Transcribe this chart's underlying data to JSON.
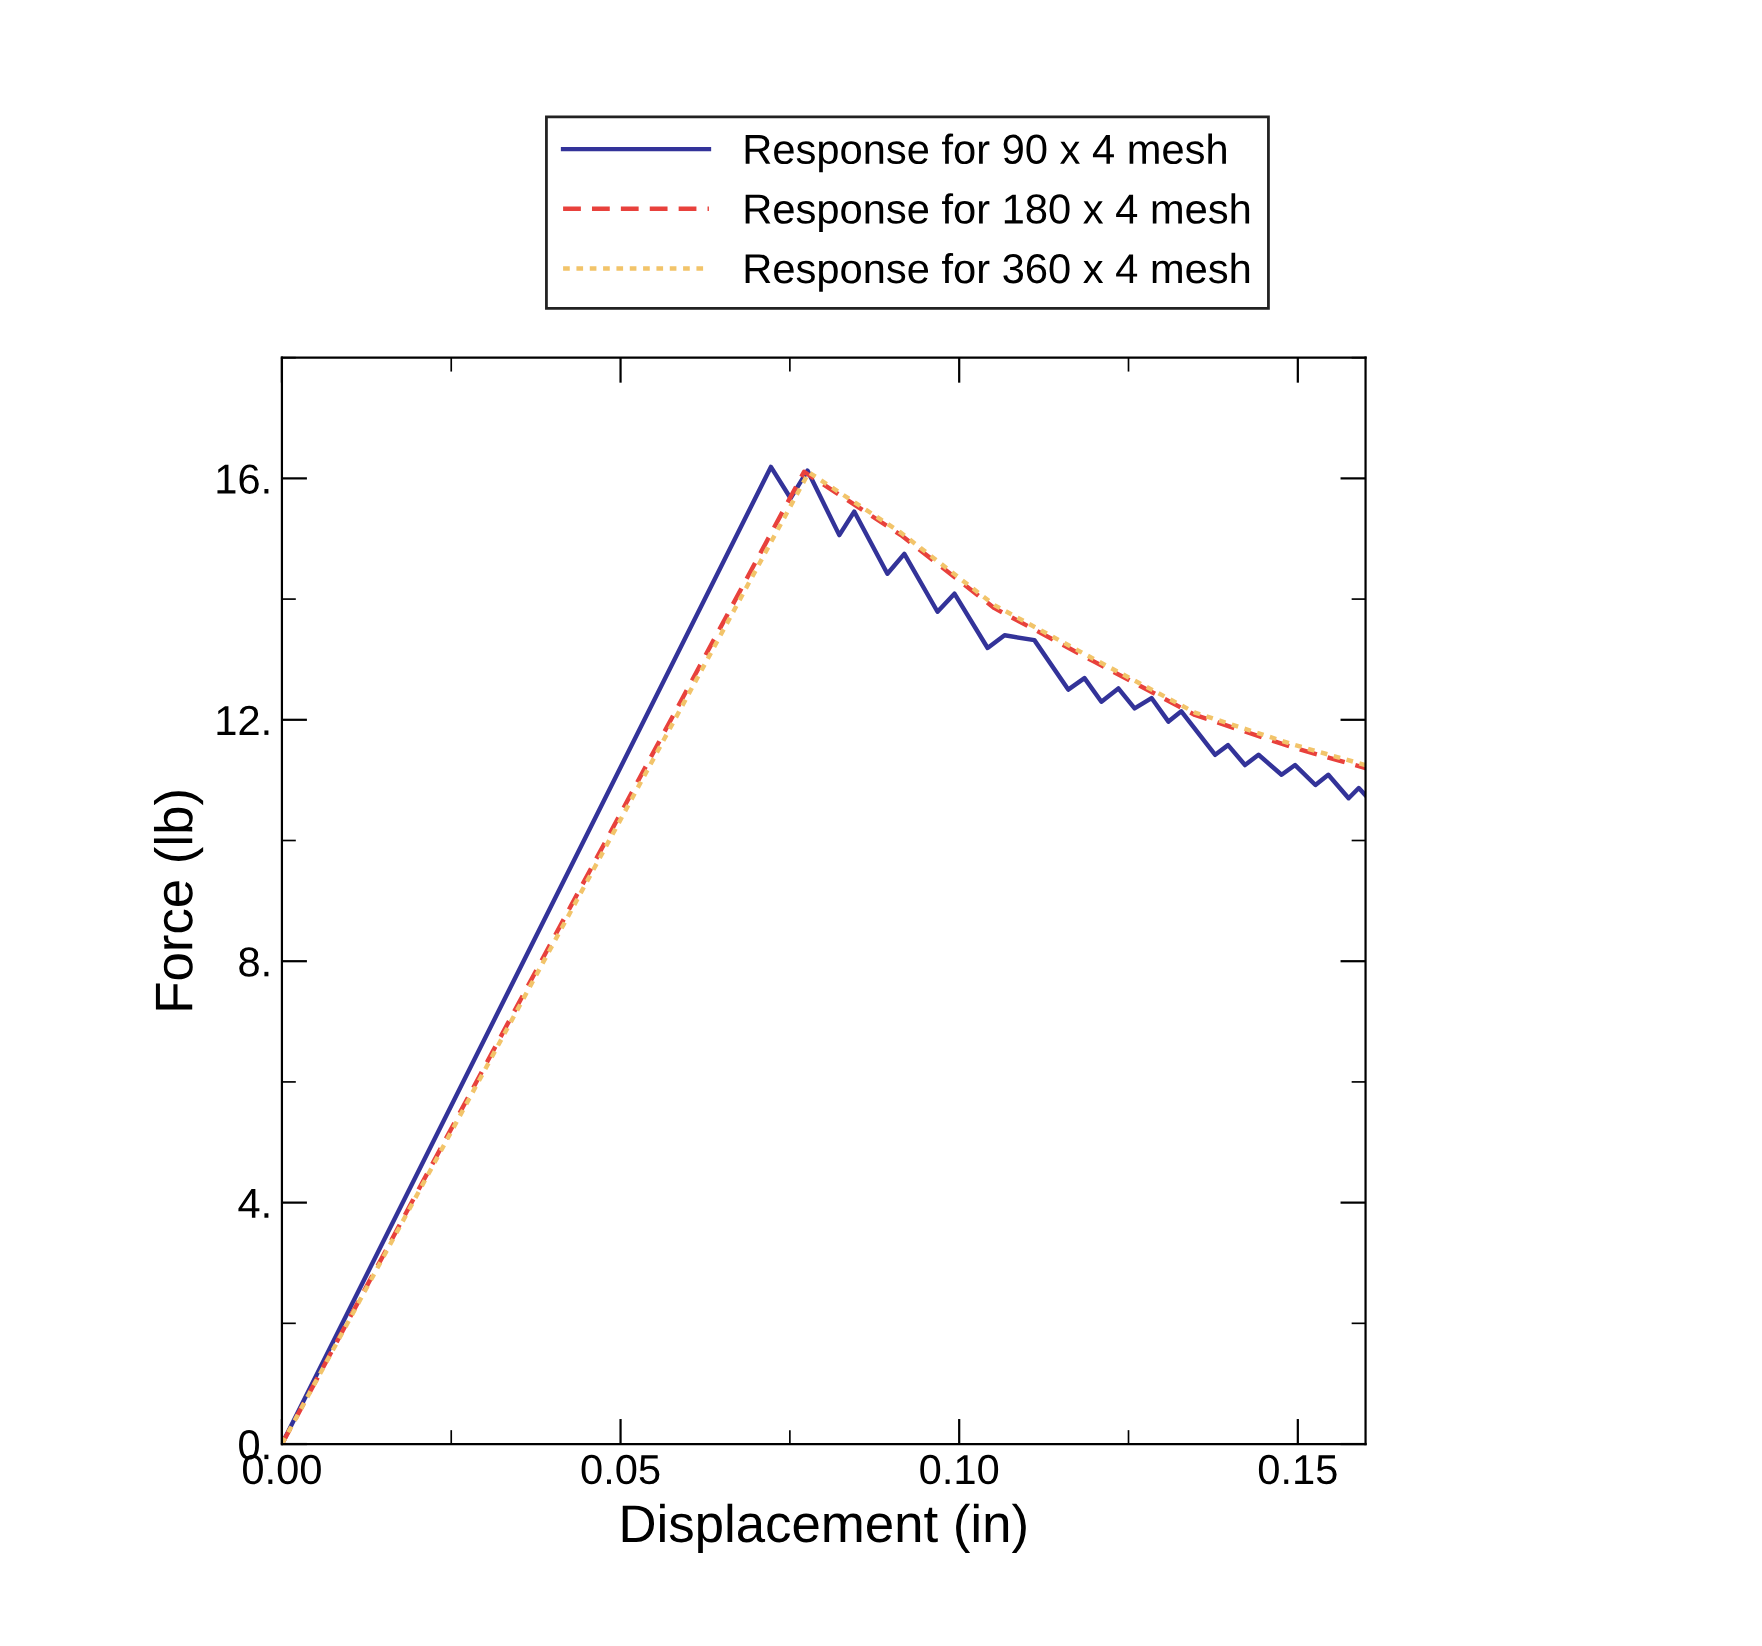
{
  "chart_data": {
    "type": "line",
    "xlabel": "Displacement (in)",
    "ylabel": "Force (lb)",
    "xlim": [
      0,
      0.16
    ],
    "ylim": [
      0,
      18
    ],
    "xticks": [
      {
        "value": 0,
        "label": "0.00"
      },
      {
        "value": 0.05,
        "label": "0.05"
      },
      {
        "value": 0.1,
        "label": "0.10"
      },
      {
        "value": 0.15,
        "label": "0.15"
      }
    ],
    "yticks": [
      {
        "value": 0,
        "label": "0."
      },
      {
        "value": 4,
        "label": "4."
      },
      {
        "value": 8,
        "label": "8."
      },
      {
        "value": 12,
        "label": "12."
      },
      {
        "value": 16,
        "label": "16."
      }
    ],
    "grid": false,
    "legend": "top",
    "series": [
      {
        "name": "Response for 90 x 4 mesh",
        "color": "#333399",
        "line_style": "solid",
        "x": [
          0,
          0.0722,
          0.0751,
          0.0776,
          0.0823,
          0.0845,
          0.0894,
          0.0919,
          0.0968,
          0.0993,
          0.1042,
          0.1067,
          0.1111,
          0.1161,
          0.1185,
          0.121,
          0.1235,
          0.1259,
          0.1284,
          0.1309,
          0.1328,
          0.1378,
          0.1397,
          0.1422,
          0.1442,
          0.1476,
          0.1496,
          0.1526,
          0.1545,
          0.1575,
          0.159,
          0.16
        ],
        "values": [
          0,
          16.19,
          15.67,
          16.13,
          15.06,
          15.45,
          14.42,
          14.75,
          13.79,
          14.09,
          13.19,
          13.4,
          13.32,
          12.5,
          12.69,
          12.3,
          12.52,
          12.19,
          12.36,
          11.97,
          12.14,
          11.42,
          11.58,
          11.25,
          11.42,
          11.09,
          11.25,
          10.92,
          11.09,
          10.7,
          10.87,
          10.75
        ]
      },
      {
        "name": "Response for 180 x 4 mesh",
        "color": "#e8413c",
        "line_style": "dashed",
        "x": [
          0,
          0.0771,
          0.0914,
          0.1052,
          0.12,
          0.1348,
          0.1496,
          0.16
        ],
        "values": [
          0,
          16.11,
          15.06,
          13.85,
          12.96,
          12.08,
          11.53,
          11.2
        ]
      },
      {
        "name": "Response for 360 x 4 mesh",
        "color": "#f2c46a",
        "line_style": "dotted",
        "x": [
          0,
          0.0778,
          0.0914,
          0.1052,
          0.12,
          0.1348,
          0.1496,
          0.16
        ],
        "values": [
          0,
          16.1,
          15.1,
          13.9,
          13.0,
          12.12,
          11.58,
          11.25
        ]
      }
    ]
  }
}
